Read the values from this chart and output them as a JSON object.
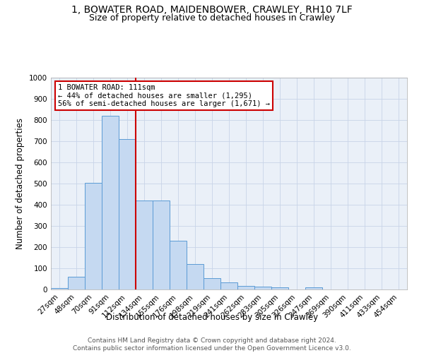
{
  "title1": "1, BOWATER ROAD, MAIDENBOWER, CRAWLEY, RH10 7LF",
  "title2": "Size of property relative to detached houses in Crawley",
  "xlabel": "Distribution of detached houses by size in Crawley",
  "ylabel": "Number of detached properties",
  "categories": [
    "27sqm",
    "48sqm",
    "70sqm",
    "91sqm",
    "112sqm",
    "134sqm",
    "155sqm",
    "176sqm",
    "198sqm",
    "219sqm",
    "241sqm",
    "262sqm",
    "283sqm",
    "305sqm",
    "326sqm",
    "347sqm",
    "369sqm",
    "390sqm",
    "411sqm",
    "433sqm",
    "454sqm"
  ],
  "values": [
    8,
    60,
    505,
    820,
    710,
    420,
    420,
    230,
    120,
    55,
    35,
    18,
    12,
    10,
    0,
    10,
    0,
    0,
    0,
    0,
    0
  ],
  "bar_color": "#c5d9f1",
  "bar_edge_color": "#5b9bd5",
  "vline_x": 4.5,
  "vline_color": "#cc0000",
  "annotation_text": "1 BOWATER ROAD: 111sqm\n← 44% of detached houses are smaller (1,295)\n56% of semi-detached houses are larger (1,671) →",
  "annotation_box_color": "#ffffff",
  "annotation_box_edge": "#cc0000",
  "ylim": [
    0,
    1000
  ],
  "yticks": [
    0,
    100,
    200,
    300,
    400,
    500,
    600,
    700,
    800,
    900,
    1000
  ],
  "bg_color": "#ffffff",
  "axes_bg_color": "#eaf0f8",
  "grid_color": "#c8d4e8",
  "footer": "Contains HM Land Registry data © Crown copyright and database right 2024.\nContains public sector information licensed under the Open Government Licence v3.0.",
  "title1_fontsize": 10,
  "title2_fontsize": 9,
  "xlabel_fontsize": 8.5,
  "ylabel_fontsize": 8.5,
  "tick_fontsize": 7.5,
  "footer_fontsize": 6.5
}
